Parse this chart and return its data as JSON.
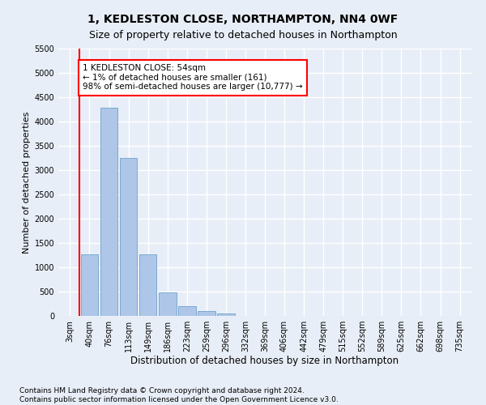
{
  "title": "1, KEDLESTON CLOSE, NORTHAMPTON, NN4 0WF",
  "subtitle": "Size of property relative to detached houses in Northampton",
  "xlabel": "Distribution of detached houses by size in Northampton",
  "ylabel": "Number of detached properties",
  "categories": [
    "3sqm",
    "40sqm",
    "76sqm",
    "113sqm",
    "149sqm",
    "186sqm",
    "223sqm",
    "259sqm",
    "296sqm",
    "332sqm",
    "369sqm",
    "406sqm",
    "442sqm",
    "479sqm",
    "515sqm",
    "552sqm",
    "589sqm",
    "625sqm",
    "662sqm",
    "698sqm",
    "735sqm"
  ],
  "bar_heights": [
    0,
    1270,
    4280,
    3250,
    1270,
    490,
    200,
    95,
    55,
    0,
    0,
    0,
    0,
    0,
    0,
    0,
    0,
    0,
    0,
    0,
    0
  ],
  "bar_color": "#aec6e8",
  "bar_edge_color": "#5a96c8",
  "vline_x": 0.5,
  "vline_color": "red",
  "annotation_text": "1 KEDLESTON CLOSE: 54sqm\n← 1% of detached houses are smaller (161)\n98% of semi-detached houses are larger (10,777) →",
  "annotation_box_color": "white",
  "annotation_box_edge_color": "red",
  "ylim": [
    0,
    5500
  ],
  "yticks": [
    0,
    500,
    1000,
    1500,
    2000,
    2500,
    3000,
    3500,
    4000,
    4500,
    5000,
    5500
  ],
  "background_color": "#e8eef7",
  "plot_bg_color": "#e8eef7",
  "grid_color": "white",
  "footer": "Contains HM Land Registry data © Crown copyright and database right 2024.\nContains public sector information licensed under the Open Government Licence v3.0.",
  "title_fontsize": 10,
  "subtitle_fontsize": 9,
  "xlabel_fontsize": 8.5,
  "ylabel_fontsize": 8,
  "tick_fontsize": 7,
  "footer_fontsize": 6.5
}
